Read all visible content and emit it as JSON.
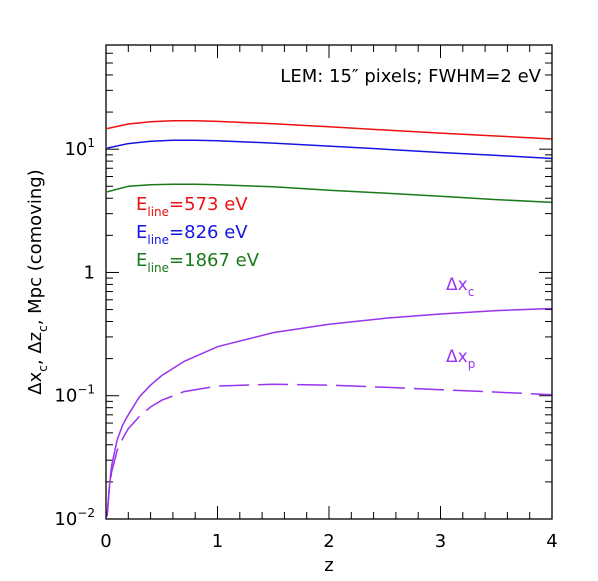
{
  "chart_data": {
    "type": "line",
    "title": "LEM: 15″ pixels; FWHM=2 eV",
    "xlabel": "z",
    "ylabel": {
      "parts": [
        "Δx",
        "c",
        ", Δz",
        "c",
        ", Mpc (comoving)"
      ]
    },
    "xlim": [
      0,
      4
    ],
    "ylim": [
      0.01,
      70
    ],
    "yscale": "log",
    "x_ticks": [
      {
        "value": 0,
        "label": "0"
      },
      {
        "value": 1,
        "label": "1"
      },
      {
        "value": 2,
        "label": "2"
      },
      {
        "value": 3,
        "label": "3"
      },
      {
        "value": 4,
        "label": "4"
      }
    ],
    "y_ticks": [
      {
        "value": 0.01,
        "base": "10",
        "exp": "−2"
      },
      {
        "value": 0.1,
        "base": "10",
        "exp": "−1"
      },
      {
        "value": 1,
        "base": "1",
        "exp": ""
      },
      {
        "value": 10,
        "base": "10",
        "exp": "1"
      }
    ],
    "legend": [
      {
        "prefix": "E",
        "sub": "line",
        "suffix": "=573 eV",
        "color": "#ee1111"
      },
      {
        "prefix": "E",
        "sub": "line",
        "suffix": "=826 eV",
        "color": "#1515e0"
      },
      {
        "prefix": "E",
        "sub": "line",
        "suffix": "=1867 eV",
        "color": "#1a7a1a"
      }
    ],
    "series": [
      {
        "color": "#ee1111",
        "dash": "solid",
        "x": [
          0.01,
          0.2,
          0.4,
          0.6,
          0.8,
          1.0,
          1.5,
          2.0,
          2.5,
          3.0,
          3.5,
          4.0
        ],
        "y": [
          14.7,
          16.0,
          16.7,
          17.0,
          17.0,
          16.8,
          16.1,
          15.2,
          14.3,
          13.5,
          12.8,
          12.1
        ]
      },
      {
        "color": "#1515e0",
        "dash": "solid",
        "x": [
          0.01,
          0.2,
          0.4,
          0.6,
          0.8,
          1.0,
          1.5,
          2.0,
          2.5,
          3.0,
          3.5,
          4.0
        ],
        "y": [
          10.2,
          11.1,
          11.6,
          11.8,
          11.8,
          11.7,
          11.2,
          10.6,
          10.0,
          9.4,
          8.9,
          8.4
        ]
      },
      {
        "color": "#1a7a1a",
        "dash": "solid",
        "x": [
          0.01,
          0.2,
          0.4,
          0.6,
          0.8,
          1.0,
          1.5,
          2.0,
          2.5,
          3.0,
          3.5,
          4.0
        ],
        "y": [
          4.5,
          5.0,
          5.15,
          5.2,
          5.2,
          5.15,
          4.95,
          4.65,
          4.4,
          4.15,
          3.9,
          3.7
        ]
      },
      {
        "name": "Δx_c",
        "color": "#9933ee",
        "dash": "solid",
        "x": [
          0.01,
          0.03,
          0.05,
          0.1,
          0.15,
          0.2,
          0.3,
          0.4,
          0.5,
          0.7,
          1.0,
          1.5,
          2.0,
          2.5,
          3.0,
          3.5,
          4.0
        ],
        "y": [
          0.0105,
          0.0182,
          0.027,
          0.044,
          0.058,
          0.07,
          0.098,
          0.122,
          0.146,
          0.19,
          0.25,
          0.325,
          0.38,
          0.425,
          0.46,
          0.49,
          0.51
        ]
      },
      {
        "name": "Δx_p",
        "color": "#9933ee",
        "dash": "dashed",
        "x": [
          0.01,
          0.03,
          0.05,
          0.1,
          0.15,
          0.2,
          0.3,
          0.4,
          0.5,
          0.7,
          1.0,
          1.5,
          2.0,
          2.5,
          3.0,
          3.5,
          4.0
        ],
        "y": [
          0.0105,
          0.0175,
          0.024,
          0.036,
          0.045,
          0.054,
          0.068,
          0.081,
          0.092,
          0.108,
          0.12,
          0.124,
          0.122,
          0.117,
          0.112,
          0.107,
          0.102
        ]
      }
    ],
    "annotations": [
      {
        "base": "Δx",
        "sub": "c",
        "color": "#9933ee"
      },
      {
        "base": "Δx",
        "sub": "p",
        "color": "#9933ee"
      }
    ]
  }
}
